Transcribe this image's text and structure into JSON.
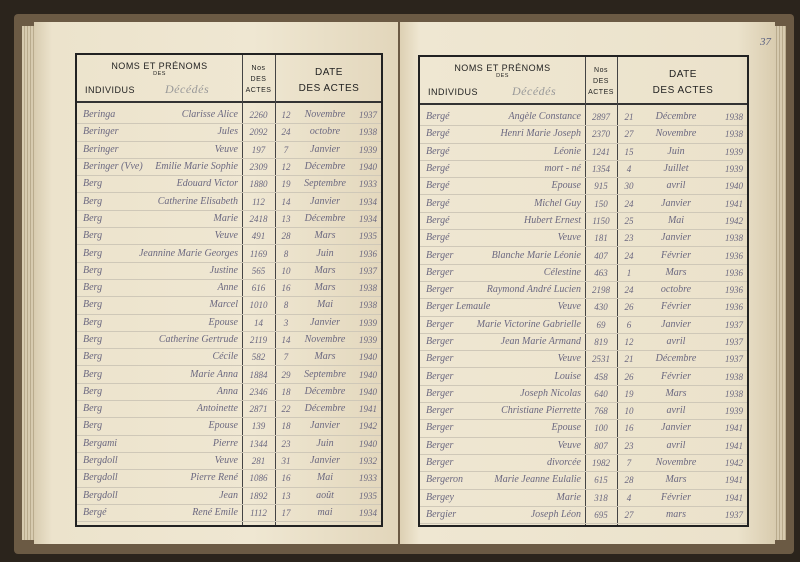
{
  "header": {
    "col_name_line1": "NOMS ET PRÉNOMS",
    "col_name_des": "DES",
    "col_name_line2": "INDIVIDUS",
    "col_name_handwritten": "Décédés",
    "col_no_line1": "Nos",
    "col_no_line2": "DES",
    "col_no_line3": "ACTES",
    "col_date_line1": "DATE",
    "col_date_line2": "DES ACTES"
  },
  "page_number": "37",
  "left_rows": [
    [
      "Beringa",
      "Clarisse Alice",
      "2260",
      "12",
      "Novembre",
      "1937"
    ],
    [
      "Beringer",
      "Jules",
      "2092",
      "24",
      "octobre",
      "1938"
    ],
    [
      "Beringer",
      "Veuve",
      "197",
      "7",
      "Janvier",
      "1939"
    ],
    [
      "Beringer (Vve)",
      "Emilie Marie Sophie",
      "2309",
      "12",
      "Décembre",
      "1940"
    ],
    [
      "Berg",
      "Edouard Victor",
      "1880",
      "19",
      "Septembre",
      "1933"
    ],
    [
      "Berg",
      "Catherine Elisabeth",
      "112",
      "14",
      "Janvier",
      "1934"
    ],
    [
      "Berg",
      "Marie",
      "2418",
      "13",
      "Décembre",
      "1934"
    ],
    [
      "Berg",
      "Veuve",
      "491",
      "28",
      "Mars",
      "1935"
    ],
    [
      "Berg",
      "Jeannine Marie Georges",
      "1169",
      "8",
      "Juin",
      "1936"
    ],
    [
      "Berg",
      "Justine",
      "565",
      "10",
      "Mars",
      "1937"
    ],
    [
      "Berg",
      "Anne",
      "616",
      "16",
      "Mars",
      "1938"
    ],
    [
      "Berg",
      "Marcel",
      "1010",
      "8",
      "Mai",
      "1938"
    ],
    [
      "Berg",
      "Epouse",
      "14",
      "3",
      "Janvier",
      "1939"
    ],
    [
      "Berg",
      "Catherine Gertrude",
      "2119",
      "14",
      "Novembre",
      "1939"
    ],
    [
      "Berg",
      "Cécile",
      "582",
      "7",
      "Mars",
      "1940"
    ],
    [
      "Berg",
      "Marie Anna",
      "1884",
      "29",
      "Septembre",
      "1940"
    ],
    [
      "Berg",
      "Anna",
      "2346",
      "18",
      "Décembre",
      "1940"
    ],
    [
      "Berg",
      "Antoinette",
      "2871",
      "22",
      "Décembre",
      "1941"
    ],
    [
      "Berg",
      "Epouse",
      "139",
      "18",
      "Janvier",
      "1942"
    ],
    [
      "Bergami",
      "Pierre",
      "1344",
      "23",
      "Juin",
      "1940"
    ],
    [
      "Bergdoll",
      "Veuve",
      "281",
      "31",
      "Janvier",
      "1932"
    ],
    [
      "Bergdoll",
      "Pierre René",
      "1086",
      "16",
      "Mai",
      "1933"
    ],
    [
      "Bergdoll",
      "Jean",
      "1892",
      "13",
      "août",
      "1935"
    ],
    [
      "Bergé",
      "René Emile",
      "1112",
      "17",
      "mai",
      "1934"
    ]
  ],
  "right_rows": [
    [
      "Bergé",
      "Angèle Constance",
      "2897",
      "21",
      "Décembre",
      "1938"
    ],
    [
      "Bergé",
      "Henri Marie Joseph",
      "2370",
      "27",
      "Novembre",
      "1938"
    ],
    [
      "Bergé",
      "Léonie",
      "1241",
      "15",
      "Juin",
      "1939"
    ],
    [
      "Bergé",
      "mort - né",
      "1354",
      "4",
      "Juillet",
      "1939"
    ],
    [
      "Bergé",
      "Epouse",
      "915",
      "30",
      "avril",
      "1940"
    ],
    [
      "Bergé",
      "Michel Guy",
      "150",
      "24",
      "Janvier",
      "1941"
    ],
    [
      "Bergé",
      "Hubert Ernest",
      "1150",
      "25",
      "Mai",
      "1942"
    ],
    [
      "Bergé",
      "Veuve",
      "181",
      "23",
      "Janvier",
      "1938"
    ],
    [
      "Berger",
      "Blanche Marie Léonie",
      "407",
      "24",
      "Février",
      "1936"
    ],
    [
      "Berger",
      "Célestine",
      "463",
      "1",
      "Mars",
      "1936"
    ],
    [
      "Berger",
      "Raymond André Lucien",
      "2198",
      "24",
      "octobre",
      "1936"
    ],
    [
      "Berger Lemaule",
      "Veuve",
      "430",
      "26",
      "Février",
      "1936"
    ],
    [
      "Berger",
      "Marie Victorine Gabrielle",
      "69",
      "6",
      "Janvier",
      "1937"
    ],
    [
      "Berger",
      "Jean Marie Armand",
      "819",
      "12",
      "avril",
      "1937"
    ],
    [
      "Berger",
      "Veuve",
      "2531",
      "21",
      "Décembre",
      "1937"
    ],
    [
      "Berger",
      "Louise",
      "458",
      "26",
      "Février",
      "1938"
    ],
    [
      "Berger",
      "Joseph Nicolas",
      "640",
      "19",
      "Mars",
      "1938"
    ],
    [
      "Berger",
      "Christiane Pierrette",
      "768",
      "10",
      "avril",
      "1939"
    ],
    [
      "Berger",
      "Epouse",
      "100",
      "16",
      "Janvier",
      "1941"
    ],
    [
      "Berger",
      "Veuve",
      "807",
      "23",
      "avril",
      "1941"
    ],
    [
      "Berger",
      "divorcée",
      "1982",
      "7",
      "Novembre",
      "1942"
    ],
    [
      "Bergeron",
      "Marie Jeanne Eulalie",
      "615",
      "28",
      "Mars",
      "1941"
    ],
    [
      "Bergey",
      "Marie",
      "318",
      "4",
      "Février",
      "1941"
    ],
    [
      "Bergier",
      "Joseph Léon",
      "695",
      "27",
      "mars",
      "1937"
    ]
  ]
}
